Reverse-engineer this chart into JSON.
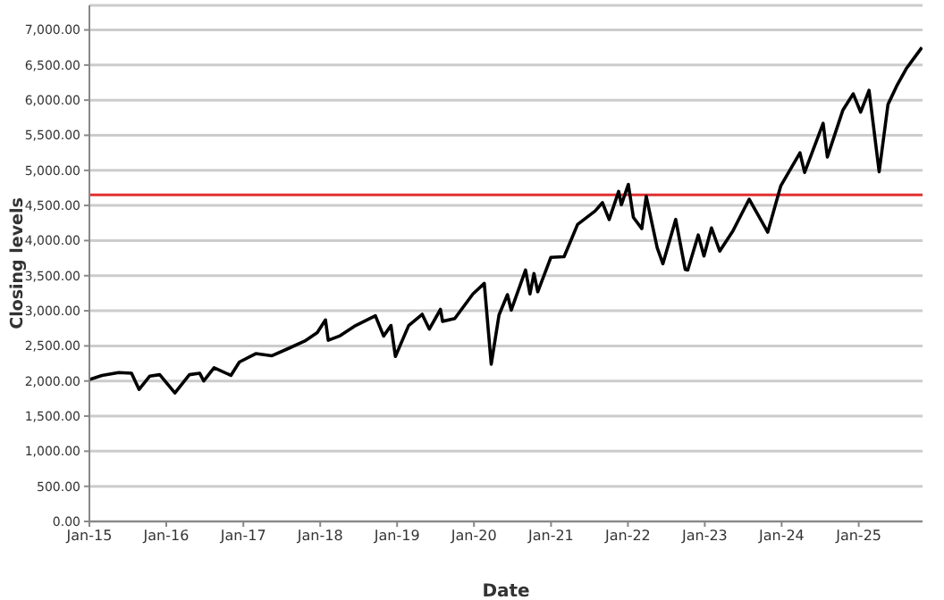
{
  "chart_data": {
    "type": "line",
    "xlabel": "Date",
    "ylabel": "Closing levels",
    "xlim": [
      "2015-01-01",
      "2025-10-31"
    ],
    "xticks": [
      {
        "value": "2015-01-01",
        "label": "Jan-15"
      },
      {
        "value": "2016-01-01",
        "label": "Jan-16"
      },
      {
        "value": "2017-01-01",
        "label": "Jan-17"
      },
      {
        "value": "2018-01-01",
        "label": "Jan-18"
      },
      {
        "value": "2019-01-01",
        "label": "Jan-19"
      },
      {
        "value": "2020-01-01",
        "label": "Jan-20"
      },
      {
        "value": "2021-01-01",
        "label": "Jan-21"
      },
      {
        "value": "2022-01-01",
        "label": "Jan-22"
      },
      {
        "value": "2023-01-01",
        "label": "Jan-23"
      },
      {
        "value": "2024-01-01",
        "label": "Jan-24"
      },
      {
        "value": "2025-01-01",
        "label": "Jan-25"
      }
    ],
    "ylim": [
      0,
      7350
    ],
    "yticks": [
      {
        "value": 0,
        "label": "0.00"
      },
      {
        "value": 500,
        "label": "500.00"
      },
      {
        "value": 1000,
        "label": "1,000.00"
      },
      {
        "value": 1500,
        "label": "1,500.00"
      },
      {
        "value": 2000,
        "label": "2,000.00"
      },
      {
        "value": 2500,
        "label": "2,500.00"
      },
      {
        "value": 3000,
        "label": "3,000.00"
      },
      {
        "value": 3500,
        "label": "3,500.00"
      },
      {
        "value": 4000,
        "label": "4,000.00"
      },
      {
        "value": 4500,
        "label": "4,500.00"
      },
      {
        "value": 5000,
        "label": "5,000.00"
      },
      {
        "value": 5500,
        "label": "5,500.00"
      },
      {
        "value": 6000,
        "label": "6,000.00"
      },
      {
        "value": 6500,
        "label": "6,500.00"
      },
      {
        "value": 7000,
        "label": "7,000.00"
      }
    ],
    "grid": "y",
    "marker": "none",
    "line_style": "solid",
    "ref_lines": [
      {
        "axis": "y",
        "value": 4650,
        "color": "#e03030"
      }
    ],
    "x": [
      "2015-01-02",
      "2015-03-02",
      "2015-05-20",
      "2015-07-20",
      "2015-08-25",
      "2015-10-15",
      "2015-12-01",
      "2016-02-11",
      "2016-04-20",
      "2016-06-08",
      "2016-06-27",
      "2016-08-15",
      "2016-11-03",
      "2016-12-13",
      "2017-03-01",
      "2017-05-17",
      "2017-08-08",
      "2017-10-20",
      "2017-12-18",
      "2018-01-26",
      "2018-02-08",
      "2018-04-02",
      "2018-06-12",
      "2018-09-20",
      "2018-10-29",
      "2018-12-03",
      "2018-12-24",
      "2019-02-25",
      "2019-04-30",
      "2019-06-03",
      "2019-07-26",
      "2019-08-05",
      "2019-10-02",
      "2019-12-27",
      "2020-02-19",
      "2020-03-23",
      "2020-04-29",
      "2020-06-08",
      "2020-06-26",
      "2020-09-02",
      "2020-09-23",
      "2020-10-12",
      "2020-10-30",
      "2020-12-31",
      "2021-03-04",
      "2021-05-07",
      "2021-07-29",
      "2021-09-02",
      "2021-10-04",
      "2021-11-18",
      "2021-12-01",
      "2022-01-03",
      "2022-01-27",
      "2022-03-08",
      "2022-03-29",
      "2022-05-20",
      "2022-06-16",
      "2022-08-16",
      "2022-09-30",
      "2022-10-12",
      "2022-12-01",
      "2022-12-28",
      "2023-02-02",
      "2023-03-13",
      "2023-05-15",
      "2023-07-31",
      "2023-10-27",
      "2023-12-28",
      "2024-03-28",
      "2024-04-19",
      "2024-07-16",
      "2024-08-05",
      "2024-10-18",
      "2024-12-06",
      "2025-01-10",
      "2025-02-19",
      "2025-04-08",
      "2025-05-20",
      "2025-06-30",
      "2025-08-15",
      "2025-10-28"
    ],
    "series": [
      {
        "color": "#000000",
        "values": [
          2020,
          2080,
          2120,
          2110,
          1880,
          2070,
          2090,
          1830,
          2090,
          2110,
          2000,
          2190,
          2080,
          2270,
          2390,
          2360,
          2470,
          2570,
          2690,
          2870,
          2580,
          2640,
          2780,
          2930,
          2640,
          2790,
          2350,
          2790,
          2950,
          2740,
          3020,
          2850,
          2890,
          3240,
          3390,
          2240,
          2940,
          3230,
          3010,
          3580,
          3240,
          3530,
          3270,
          3760,
          3770,
          4230,
          4420,
          4540,
          4300,
          4700,
          4510,
          4800,
          4330,
          4170,
          4630,
          3900,
          3670,
          4300,
          3590,
          3580,
          4080,
          3780,
          4180,
          3850,
          4140,
          4590,
          4120,
          4780,
          5250,
          4970,
          5670,
          5190,
          5860,
          6090,
          5830,
          6140,
          4980,
          5940,
          6200,
          6450,
          6750
        ]
      }
    ]
  }
}
